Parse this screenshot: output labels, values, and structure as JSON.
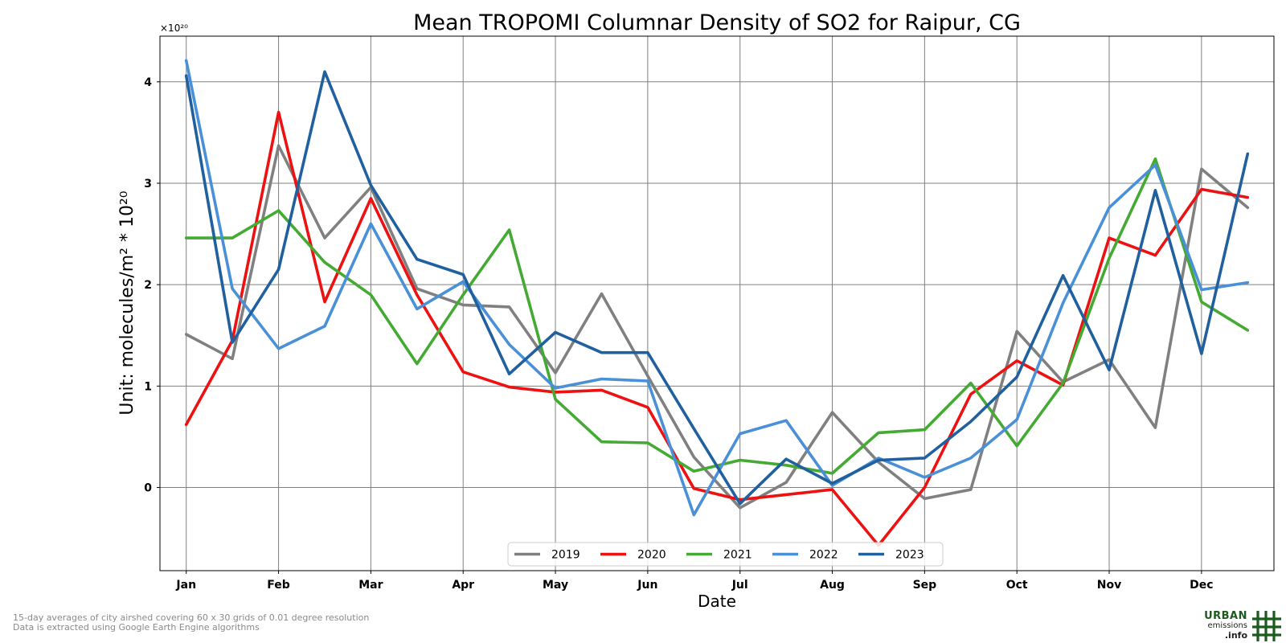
{
  "chart_data": {
    "type": "line",
    "title": "Mean TROPOMI Columnar Density of SO2 for Raipur, CG",
    "xlabel": "Date",
    "ylabel": "Unit: molecules/m² * 10²⁰",
    "y_multiplier_label": "×10²⁰",
    "ylim": [
      -0.82,
      4.45
    ],
    "xlim": [
      -0.57,
      23.57
    ],
    "grid": true,
    "legend_position": "lower-center",
    "x_ticks": [
      0,
      2,
      4,
      6,
      8,
      10,
      12,
      14,
      16,
      18,
      20,
      22
    ],
    "x_tick_labels": [
      "Jan",
      "Feb",
      "Mar",
      "Apr",
      "May",
      "Jun",
      "Jul",
      "Aug",
      "Sep",
      "Oct",
      "Nov",
      "Dec"
    ],
    "y_ticks": [
      0,
      1,
      2,
      3,
      4
    ],
    "y_tick_labels": [
      "0",
      "1",
      "2",
      "3",
      "4"
    ],
    "x": [
      0,
      1,
      2,
      3,
      4,
      5,
      6,
      7,
      8,
      9,
      10,
      11,
      12,
      13,
      14,
      15,
      16,
      17,
      18,
      19,
      20,
      21,
      22,
      23
    ],
    "series": [
      {
        "name": "2019",
        "color": "#808080",
        "values": [
          1.51,
          1.27,
          3.37,
          2.46,
          2.96,
          1.96,
          1.8,
          1.78,
          1.13,
          1.91,
          1.1,
          0.3,
          -0.2,
          0.05,
          0.74,
          0.25,
          -0.11,
          -0.02,
          1.54,
          1.04,
          1.26,
          0.59,
          3.14,
          2.76
        ]
      },
      {
        "name": "2020",
        "color": "#ee1111",
        "values": [
          0.62,
          1.45,
          3.7,
          1.83,
          2.85,
          1.9,
          1.14,
          0.99,
          0.94,
          0.96,
          0.79,
          -0.01,
          -0.12,
          -0.07,
          -0.02,
          -0.57,
          0.0,
          0.92,
          1.25,
          1.01,
          2.46,
          2.29,
          2.94,
          2.86
        ]
      },
      {
        "name": "2021",
        "color": "#44aa33",
        "values": [
          2.46,
          2.46,
          2.73,
          2.22,
          1.9,
          1.22,
          1.9,
          2.54,
          0.87,
          0.45,
          0.44,
          0.16,
          0.27,
          0.22,
          0.14,
          0.54,
          0.57,
          1.03,
          0.41,
          1.03,
          2.26,
          3.24,
          1.83,
          1.55
        ]
      },
      {
        "name": "2022",
        "color": "#4a90d8",
        "values": [
          4.21,
          1.96,
          1.37,
          1.59,
          2.6,
          1.76,
          2.03,
          1.41,
          0.98,
          1.07,
          1.05,
          -0.27,
          0.53,
          0.66,
          0.02,
          0.29,
          0.1,
          0.29,
          0.67,
          1.82,
          2.76,
          3.18,
          1.95,
          2.02
        ]
      },
      {
        "name": "2023",
        "color": "#20609f",
        "values": [
          4.06,
          1.43,
          2.15,
          4.1,
          2.98,
          2.25,
          2.1,
          1.12,
          1.53,
          1.33,
          1.33,
          0.58,
          -0.16,
          0.28,
          0.04,
          0.27,
          0.29,
          0.65,
          1.09,
          2.09,
          1.16,
          2.93,
          1.32,
          3.29
        ]
      }
    ]
  },
  "footer": {
    "line1": "15-day averages of city airshed covering 60 x 30 grids of 0.01 degree resolution",
    "line2": "Data is extracted using Google Earth Engine algorithms"
  },
  "logo": {
    "line1": "URBAN",
    "line2": "emissions",
    "line3": ".info"
  }
}
